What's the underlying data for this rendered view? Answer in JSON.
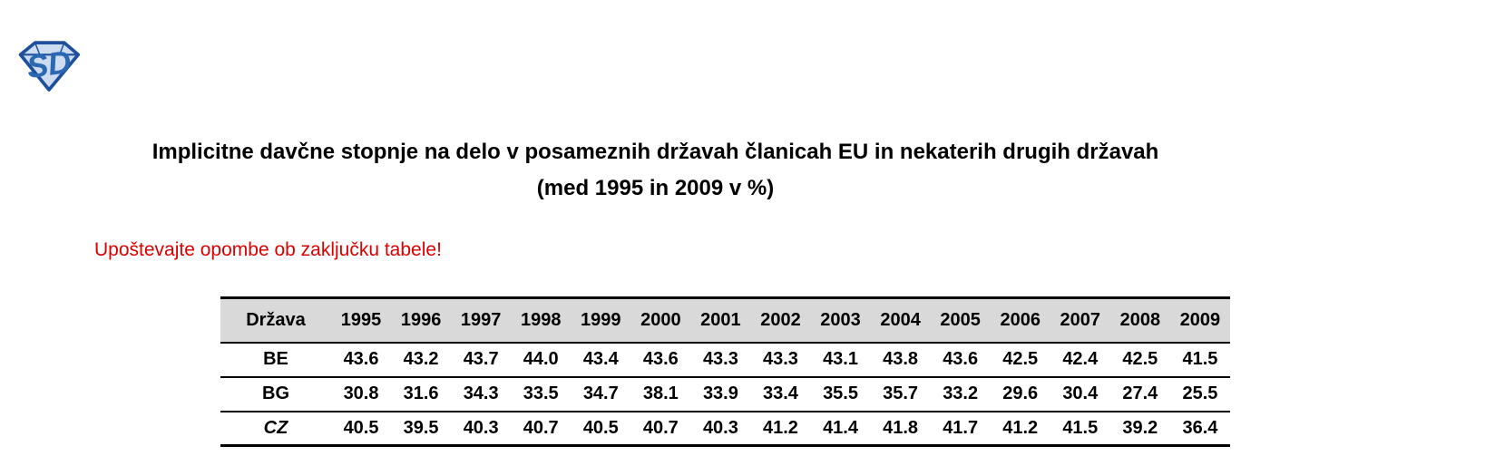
{
  "logo": {
    "letters": "SD",
    "outline_color": "#1d4f9c",
    "facet_color": "#cddcf0",
    "letter_color": "#2a68b2"
  },
  "title": {
    "line1": "Implicitne davčne stopnje na delo v posameznih državah članicah EU in nekaterih drugih državah",
    "line2": "(med 1995 in 2009 v %)"
  },
  "note": {
    "text": "Upoštevajte opombe ob zaključku tabele!",
    "color": "#dd0000"
  },
  "table": {
    "header_bg": "#d9d9d9",
    "columns": [
      "Država",
      "1995",
      "1996",
      "1997",
      "1998",
      "1999",
      "2000",
      "2001",
      "2002",
      "2003",
      "2004",
      "2005",
      "2006",
      "2007",
      "2008",
      "2009"
    ],
    "rows": [
      {
        "country": "BE",
        "italic": false,
        "values": [
          "43.6",
          "43.2",
          "43.7",
          "44.0",
          "43.4",
          "43.6",
          "43.3",
          "43.3",
          "43.1",
          "43.8",
          "43.6",
          "42.5",
          "42.4",
          "42.5",
          "41.5"
        ]
      },
      {
        "country": "BG",
        "italic": false,
        "values": [
          "30.8",
          "31.6",
          "34.3",
          "33.5",
          "34.7",
          "38.1",
          "33.9",
          "33.4",
          "35.5",
          "35.7",
          "33.2",
          "29.6",
          "30.4",
          "27.4",
          "25.5"
        ]
      },
      {
        "country": "CZ",
        "italic": true,
        "values": [
          "40.5",
          "39.5",
          "40.3",
          "40.7",
          "40.5",
          "40.7",
          "40.3",
          "41.2",
          "41.4",
          "41.8",
          "41.7",
          "41.2",
          "41.5",
          "39.2",
          "36.4"
        ]
      }
    ]
  }
}
